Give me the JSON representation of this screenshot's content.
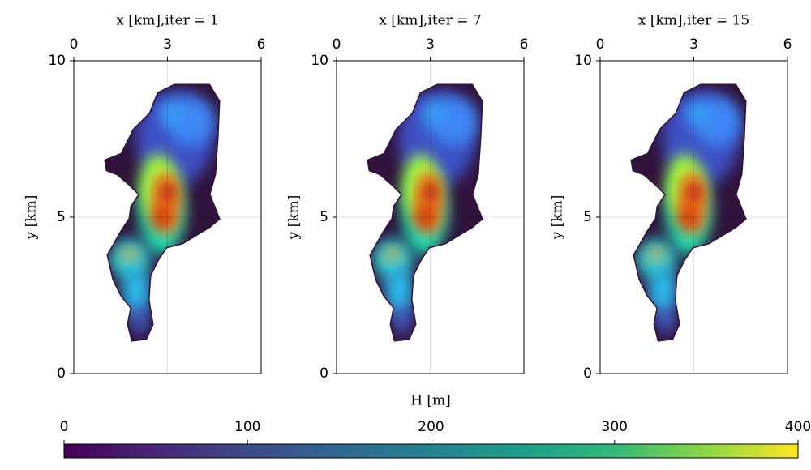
{
  "chart_data": [
    {
      "type": "heatmap",
      "title": "x [km],iter = 1",
      "y_label": "y [km]",
      "xlim": [
        0,
        6
      ],
      "xticks": [
        0,
        3,
        6
      ],
      "ylim": [
        0,
        10
      ],
      "yticks": [
        0,
        5,
        10
      ]
    },
    {
      "type": "heatmap",
      "title": "x [km],iter = 7",
      "y_label": "y [km]",
      "xlim": [
        0,
        6
      ],
      "xticks": [
        0,
        3,
        6
      ],
      "ylim": [
        0,
        10
      ],
      "yticks": [
        0,
        5,
        10
      ]
    },
    {
      "type": "heatmap",
      "title": "x [km],iter = 15",
      "y_label": "y [km]",
      "xlim": [
        0,
        6
      ],
      "xticks": [
        0,
        3,
        6
      ],
      "ylim": [
        0,
        10
      ],
      "yticks": [
        0,
        5,
        10
      ]
    },
    {
      "type": "colorbar",
      "label": "H [m]",
      "xlim": [
        0,
        400
      ],
      "xticks": [
        0,
        100,
        200,
        300,
        400
      ]
    }
  ]
}
